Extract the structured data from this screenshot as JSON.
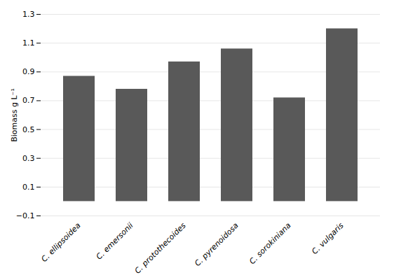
{
  "chart_data": {
    "type": "bar",
    "categories": [
      "C. ellipsoidea",
      "C. emersonii",
      "C. protothecoides",
      "C. pyrenoidosa",
      "C. sorokiniana",
      "C. vulgaris"
    ],
    "values": [
      0.87,
      0.78,
      0.97,
      1.06,
      0.72,
      1.2
    ],
    "color": "#595959",
    "ylabel": "Biomass g L⁻¹",
    "ylim": [
      -0.1,
      1.3
    ],
    "yticks": [
      -0.1,
      0.1,
      0.3,
      0.5,
      0.7,
      0.9,
      1.1,
      1.3
    ],
    "grid": true
  }
}
